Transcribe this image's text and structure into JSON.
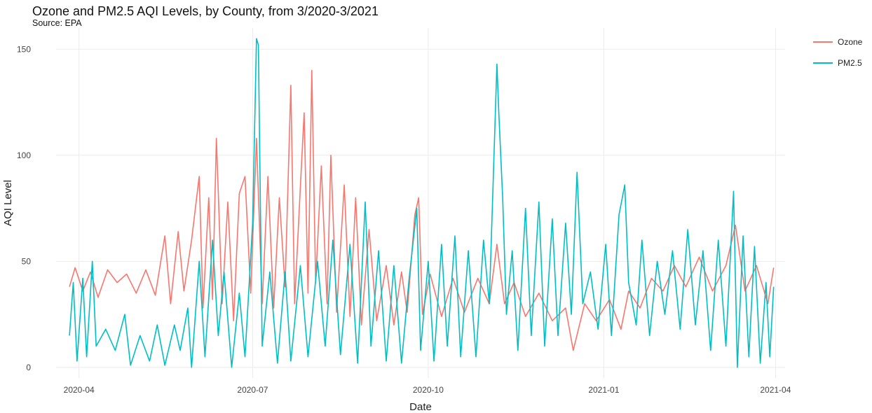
{
  "chart_data": {
    "type": "line",
    "title": "Ozone and PM2.5 AQI Levels, by County, from 3/2020-3/2021",
    "subtitle": "Source: EPA",
    "xlabel": "Date",
    "ylabel": "AQI Level",
    "xlim": [
      "2020-03-20",
      "2021-04-06"
    ],
    "ylim": [
      -5,
      160
    ],
    "x_ticks": [
      "2020-04-01",
      "2020-07-01",
      "2020-10-01",
      "2021-01-01",
      "2021-04-01"
    ],
    "x_tick_labels": [
      "2020-04",
      "2020-07",
      "2020-10",
      "2021-01",
      "2021-04"
    ],
    "y_ticks": [
      0,
      50,
      100,
      150
    ],
    "y_tick_labels": [
      "0",
      "50",
      "100",
      "150"
    ],
    "grid": true,
    "legend_position": "right",
    "series": [
      {
        "name": "Ozone",
        "color": "#f8766d",
        "points": [
          [
            "2020-03-27",
            38
          ],
          [
            "2020-03-30",
            47
          ],
          [
            "2020-04-03",
            36
          ],
          [
            "2020-04-07",
            45
          ],
          [
            "2020-04-11",
            33
          ],
          [
            "2020-04-16",
            46
          ],
          [
            "2020-04-21",
            40
          ],
          [
            "2020-04-26",
            44
          ],
          [
            "2020-05-01",
            35
          ],
          [
            "2020-05-06",
            46
          ],
          [
            "2020-05-11",
            34
          ],
          [
            "2020-05-16",
            62
          ],
          [
            "2020-05-19",
            30
          ],
          [
            "2020-05-23",
            64
          ],
          [
            "2020-05-26",
            36
          ],
          [
            "2020-05-30",
            60
          ],
          [
            "2020-06-03",
            90
          ],
          [
            "2020-06-05",
            28
          ],
          [
            "2020-06-08",
            80
          ],
          [
            "2020-06-10",
            32
          ],
          [
            "2020-06-12",
            108
          ],
          [
            "2020-06-15",
            30
          ],
          [
            "2020-06-18",
            78
          ],
          [
            "2020-06-21",
            22
          ],
          [
            "2020-06-24",
            82
          ],
          [
            "2020-06-27",
            90
          ],
          [
            "2020-06-30",
            35
          ],
          [
            "2020-07-03",
            108
          ],
          [
            "2020-07-06",
            30
          ],
          [
            "2020-07-09",
            90
          ],
          [
            "2020-07-12",
            28
          ],
          [
            "2020-07-15",
            80
          ],
          [
            "2020-07-18",
            38
          ],
          [
            "2020-07-21",
            133
          ],
          [
            "2020-07-23",
            30
          ],
          [
            "2020-07-26",
            85
          ],
          [
            "2020-07-28",
            120
          ],
          [
            "2020-07-30",
            35
          ],
          [
            "2020-08-01",
            140
          ],
          [
            "2020-08-03",
            40
          ],
          [
            "2020-08-06",
            95
          ],
          [
            "2020-08-09",
            30
          ],
          [
            "2020-08-11",
            100
          ],
          [
            "2020-08-14",
            26
          ],
          [
            "2020-08-18",
            86
          ],
          [
            "2020-08-21",
            24
          ],
          [
            "2020-08-24",
            80
          ],
          [
            "2020-08-27",
            20
          ],
          [
            "2020-08-31",
            65
          ],
          [
            "2020-09-04",
            22
          ],
          [
            "2020-09-09",
            48
          ],
          [
            "2020-09-13",
            20
          ],
          [
            "2020-09-17",
            45
          ],
          [
            "2020-09-20",
            26
          ],
          [
            "2020-09-24",
            72
          ],
          [
            "2020-09-26",
            80
          ],
          [
            "2020-09-28",
            25
          ],
          [
            "2020-10-02",
            44
          ],
          [
            "2020-10-08",
            24
          ],
          [
            "2020-10-14",
            42
          ],
          [
            "2020-10-20",
            26
          ],
          [
            "2020-10-27",
            42
          ],
          [
            "2020-11-02",
            30
          ],
          [
            "2020-11-06",
            58
          ],
          [
            "2020-11-10",
            30
          ],
          [
            "2020-11-15",
            40
          ],
          [
            "2020-11-21",
            24
          ],
          [
            "2020-11-28",
            35
          ],
          [
            "2020-12-05",
            22
          ],
          [
            "2020-12-12",
            28
          ],
          [
            "2020-12-16",
            8
          ],
          [
            "2020-12-22",
            30
          ],
          [
            "2020-12-28",
            22
          ],
          [
            "2021-01-04",
            32
          ],
          [
            "2021-01-10",
            18
          ],
          [
            "2021-01-14",
            36
          ],
          [
            "2021-01-20",
            28
          ],
          [
            "2021-01-26",
            42
          ],
          [
            "2021-02-01",
            36
          ],
          [
            "2021-02-07",
            48
          ],
          [
            "2021-02-13",
            38
          ],
          [
            "2021-02-20",
            52
          ],
          [
            "2021-02-27",
            36
          ],
          [
            "2021-03-06",
            48
          ],
          [
            "2021-03-11",
            67
          ],
          [
            "2021-03-16",
            36
          ],
          [
            "2021-03-22",
            48
          ],
          [
            "2021-03-28",
            30
          ],
          [
            "2021-03-31",
            47
          ]
        ]
      },
      {
        "name": "PM2.5",
        "color": "#00bfc4",
        "points": [
          [
            "2020-03-27",
            15
          ],
          [
            "2020-03-29",
            40
          ],
          [
            "2020-03-31",
            3
          ],
          [
            "2020-04-03",
            42
          ],
          [
            "2020-04-05",
            5
          ],
          [
            "2020-04-08",
            50
          ],
          [
            "2020-04-10",
            10
          ],
          [
            "2020-04-15",
            18
          ],
          [
            "2020-04-20",
            8
          ],
          [
            "2020-04-25",
            25
          ],
          [
            "2020-04-28",
            1
          ],
          [
            "2020-05-03",
            15
          ],
          [
            "2020-05-08",
            3
          ],
          [
            "2020-05-12",
            20
          ],
          [
            "2020-05-16",
            1
          ],
          [
            "2020-05-21",
            20
          ],
          [
            "2020-05-24",
            8
          ],
          [
            "2020-05-28",
            28
          ],
          [
            "2020-05-30",
            0
          ],
          [
            "2020-06-03",
            50
          ],
          [
            "2020-06-06",
            5
          ],
          [
            "2020-06-10",
            60
          ],
          [
            "2020-06-13",
            15
          ],
          [
            "2020-06-16",
            45
          ],
          [
            "2020-06-20",
            0
          ],
          [
            "2020-06-24",
            35
          ],
          [
            "2020-06-27",
            5
          ],
          [
            "2020-07-01",
            68
          ],
          [
            "2020-07-03",
            155
          ],
          [
            "2020-07-04",
            152
          ],
          [
            "2020-07-06",
            10
          ],
          [
            "2020-07-10",
            45
          ],
          [
            "2020-07-14",
            2
          ],
          [
            "2020-07-18",
            45
          ],
          [
            "2020-07-21",
            3
          ],
          [
            "2020-07-26",
            48
          ],
          [
            "2020-07-30",
            5
          ],
          [
            "2020-08-04",
            50
          ],
          [
            "2020-08-08",
            10
          ],
          [
            "2020-08-12",
            60
          ],
          [
            "2020-08-16",
            6
          ],
          [
            "2020-08-21",
            58
          ],
          [
            "2020-08-25",
            2
          ],
          [
            "2020-08-29",
            78
          ],
          [
            "2020-09-01",
            10
          ],
          [
            "2020-09-05",
            55
          ],
          [
            "2020-09-09",
            3
          ],
          [
            "2020-09-13",
            48
          ],
          [
            "2020-09-17",
            2
          ],
          [
            "2020-09-21",
            42
          ],
          [
            "2020-09-25",
            75
          ],
          [
            "2020-09-27",
            8
          ],
          [
            "2020-10-01",
            50
          ],
          [
            "2020-10-04",
            3
          ],
          [
            "2020-10-08",
            58
          ],
          [
            "2020-10-11",
            10
          ],
          [
            "2020-10-15",
            62
          ],
          [
            "2020-10-18",
            5
          ],
          [
            "2020-10-22",
            55
          ],
          [
            "2020-10-26",
            5
          ],
          [
            "2020-10-30",
            60
          ],
          [
            "2020-11-02",
            30
          ],
          [
            "2020-11-06",
            143
          ],
          [
            "2020-11-07",
            120
          ],
          [
            "2020-11-09",
            80
          ],
          [
            "2020-11-11",
            25
          ],
          [
            "2020-11-14",
            55
          ],
          [
            "2020-11-17",
            8
          ],
          [
            "2020-11-21",
            75
          ],
          [
            "2020-11-24",
            15
          ],
          [
            "2020-11-28",
            78
          ],
          [
            "2020-12-01",
            10
          ],
          [
            "2020-12-05",
            70
          ],
          [
            "2020-12-08",
            15
          ],
          [
            "2020-12-12",
            68
          ],
          [
            "2020-12-15",
            25
          ],
          [
            "2020-12-18",
            92
          ],
          [
            "2020-12-21",
            30
          ],
          [
            "2020-12-25",
            45
          ],
          [
            "2020-12-29",
            18
          ],
          [
            "2021-01-02",
            58
          ],
          [
            "2021-01-05",
            15
          ],
          [
            "2021-01-09",
            72
          ],
          [
            "2021-01-12",
            86
          ],
          [
            "2021-01-14",
            40
          ],
          [
            "2021-01-18",
            20
          ],
          [
            "2021-01-21",
            60
          ],
          [
            "2021-01-25",
            15
          ],
          [
            "2021-01-29",
            50
          ],
          [
            "2021-02-02",
            25
          ],
          [
            "2021-02-06",
            55
          ],
          [
            "2021-02-10",
            18
          ],
          [
            "2021-02-14",
            65
          ],
          [
            "2021-02-18",
            20
          ],
          [
            "2021-02-22",
            55
          ],
          [
            "2021-02-26",
            8
          ],
          [
            "2021-03-02",
            60
          ],
          [
            "2021-03-06",
            10
          ],
          [
            "2021-03-10",
            83
          ],
          [
            "2021-03-12",
            0
          ],
          [
            "2021-03-15",
            62
          ],
          [
            "2021-03-18",
            5
          ],
          [
            "2021-03-21",
            57
          ],
          [
            "2021-03-24",
            2
          ],
          [
            "2021-03-27",
            40
          ],
          [
            "2021-03-29",
            5
          ],
          [
            "2021-03-31",
            38
          ]
        ]
      }
    ]
  }
}
